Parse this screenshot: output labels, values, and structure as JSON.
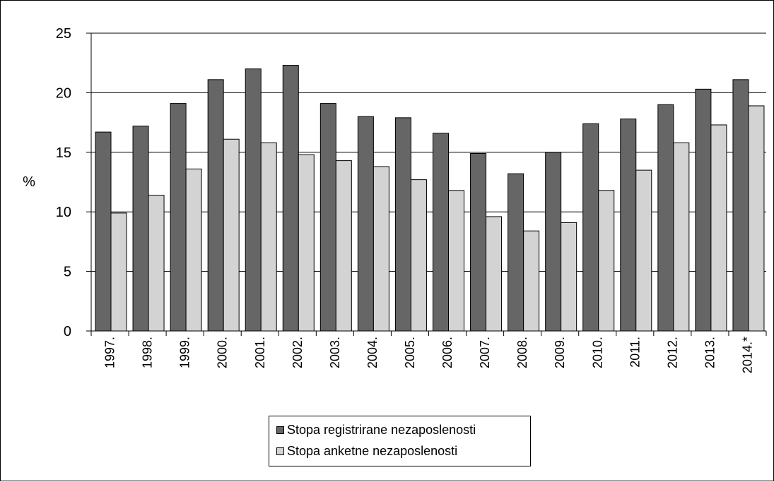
{
  "chart_data": {
    "type": "bar",
    "title": "",
    "xlabel": "",
    "ylabel": "%",
    "ylim": [
      0,
      25
    ],
    "yticks": [
      0,
      5,
      10,
      15,
      20,
      25
    ],
    "grid": true,
    "legend_position": "bottom-center",
    "categories": [
      "1997.",
      "1998.",
      "1999.",
      "2000.",
      "2001.",
      "2002.",
      "2003.",
      "2004.",
      "2005.",
      "2006.",
      "2007.",
      "2008.",
      "2009.",
      "2010.",
      "2011.",
      "2012.",
      "2013.",
      "2014.*"
    ],
    "series": [
      {
        "name": "Stopa registrirane nezaposlenosti",
        "color": "#666666",
        "values": [
          16.7,
          17.2,
          19.1,
          21.1,
          22.0,
          22.3,
          19.1,
          18.0,
          17.9,
          16.6,
          14.9,
          13.2,
          15.0,
          17.4,
          17.8,
          19.0,
          20.3,
          21.1
        ]
      },
      {
        "name": "Stopa anketne nezaposlenosti",
        "color": "#d3d3d3",
        "values": [
          9.9,
          11.4,
          13.6,
          16.1,
          15.8,
          14.8,
          14.3,
          13.8,
          12.7,
          11.8,
          9.6,
          8.4,
          9.1,
          11.8,
          13.5,
          15.8,
          17.3,
          18.9
        ]
      }
    ]
  }
}
